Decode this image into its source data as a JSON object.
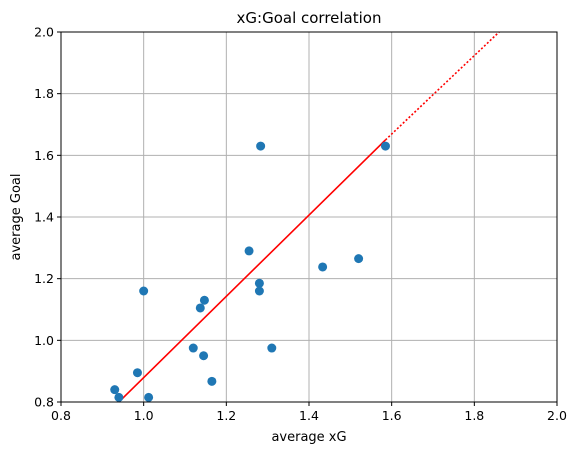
{
  "chart_data": {
    "type": "scatter",
    "title": "xG:Goal correlation",
    "xlabel": "average xG",
    "ylabel": "average Goal",
    "xlim": [
      0.8,
      2.0
    ],
    "ylim": [
      0.8,
      2.0
    ],
    "xticks": [
      "0.8",
      "1.0",
      "1.2",
      "1.4",
      "1.6",
      "1.8",
      "2.0"
    ],
    "yticks": [
      "0.8",
      "1.0",
      "1.2",
      "1.4",
      "1.6",
      "1.8",
      "2.0"
    ],
    "grid": true,
    "points": [
      {
        "x": 0.93,
        "y": 0.84
      },
      {
        "x": 0.94,
        "y": 0.815
      },
      {
        "x": 0.985,
        "y": 0.895
      },
      {
        "x": 1.0,
        "y": 1.16
      },
      {
        "x": 1.012,
        "y": 0.815
      },
      {
        "x": 1.12,
        "y": 0.975
      },
      {
        "x": 1.137,
        "y": 1.105
      },
      {
        "x": 1.145,
        "y": 0.95
      },
      {
        "x": 1.147,
        "y": 1.13
      },
      {
        "x": 1.165,
        "y": 0.867
      },
      {
        "x": 1.255,
        "y": 1.29
      },
      {
        "x": 1.28,
        "y": 1.185
      },
      {
        "x": 1.28,
        "y": 1.16
      },
      {
        "x": 1.283,
        "y": 1.63
      },
      {
        "x": 1.31,
        "y": 0.975
      },
      {
        "x": 1.433,
        "y": 1.238
      },
      {
        "x": 1.52,
        "y": 1.265
      },
      {
        "x": 1.585,
        "y": 1.63
      }
    ],
    "fit_line": {
      "x0": 0.94,
      "y0": 0.8,
      "x1": 1.585,
      "y1": 1.65,
      "x2": 1.86,
      "y2": 2.0
    },
    "colors": {
      "points": "#1f77b4",
      "fit_line": "#ff0000",
      "grid": "#b0b0b0"
    }
  }
}
